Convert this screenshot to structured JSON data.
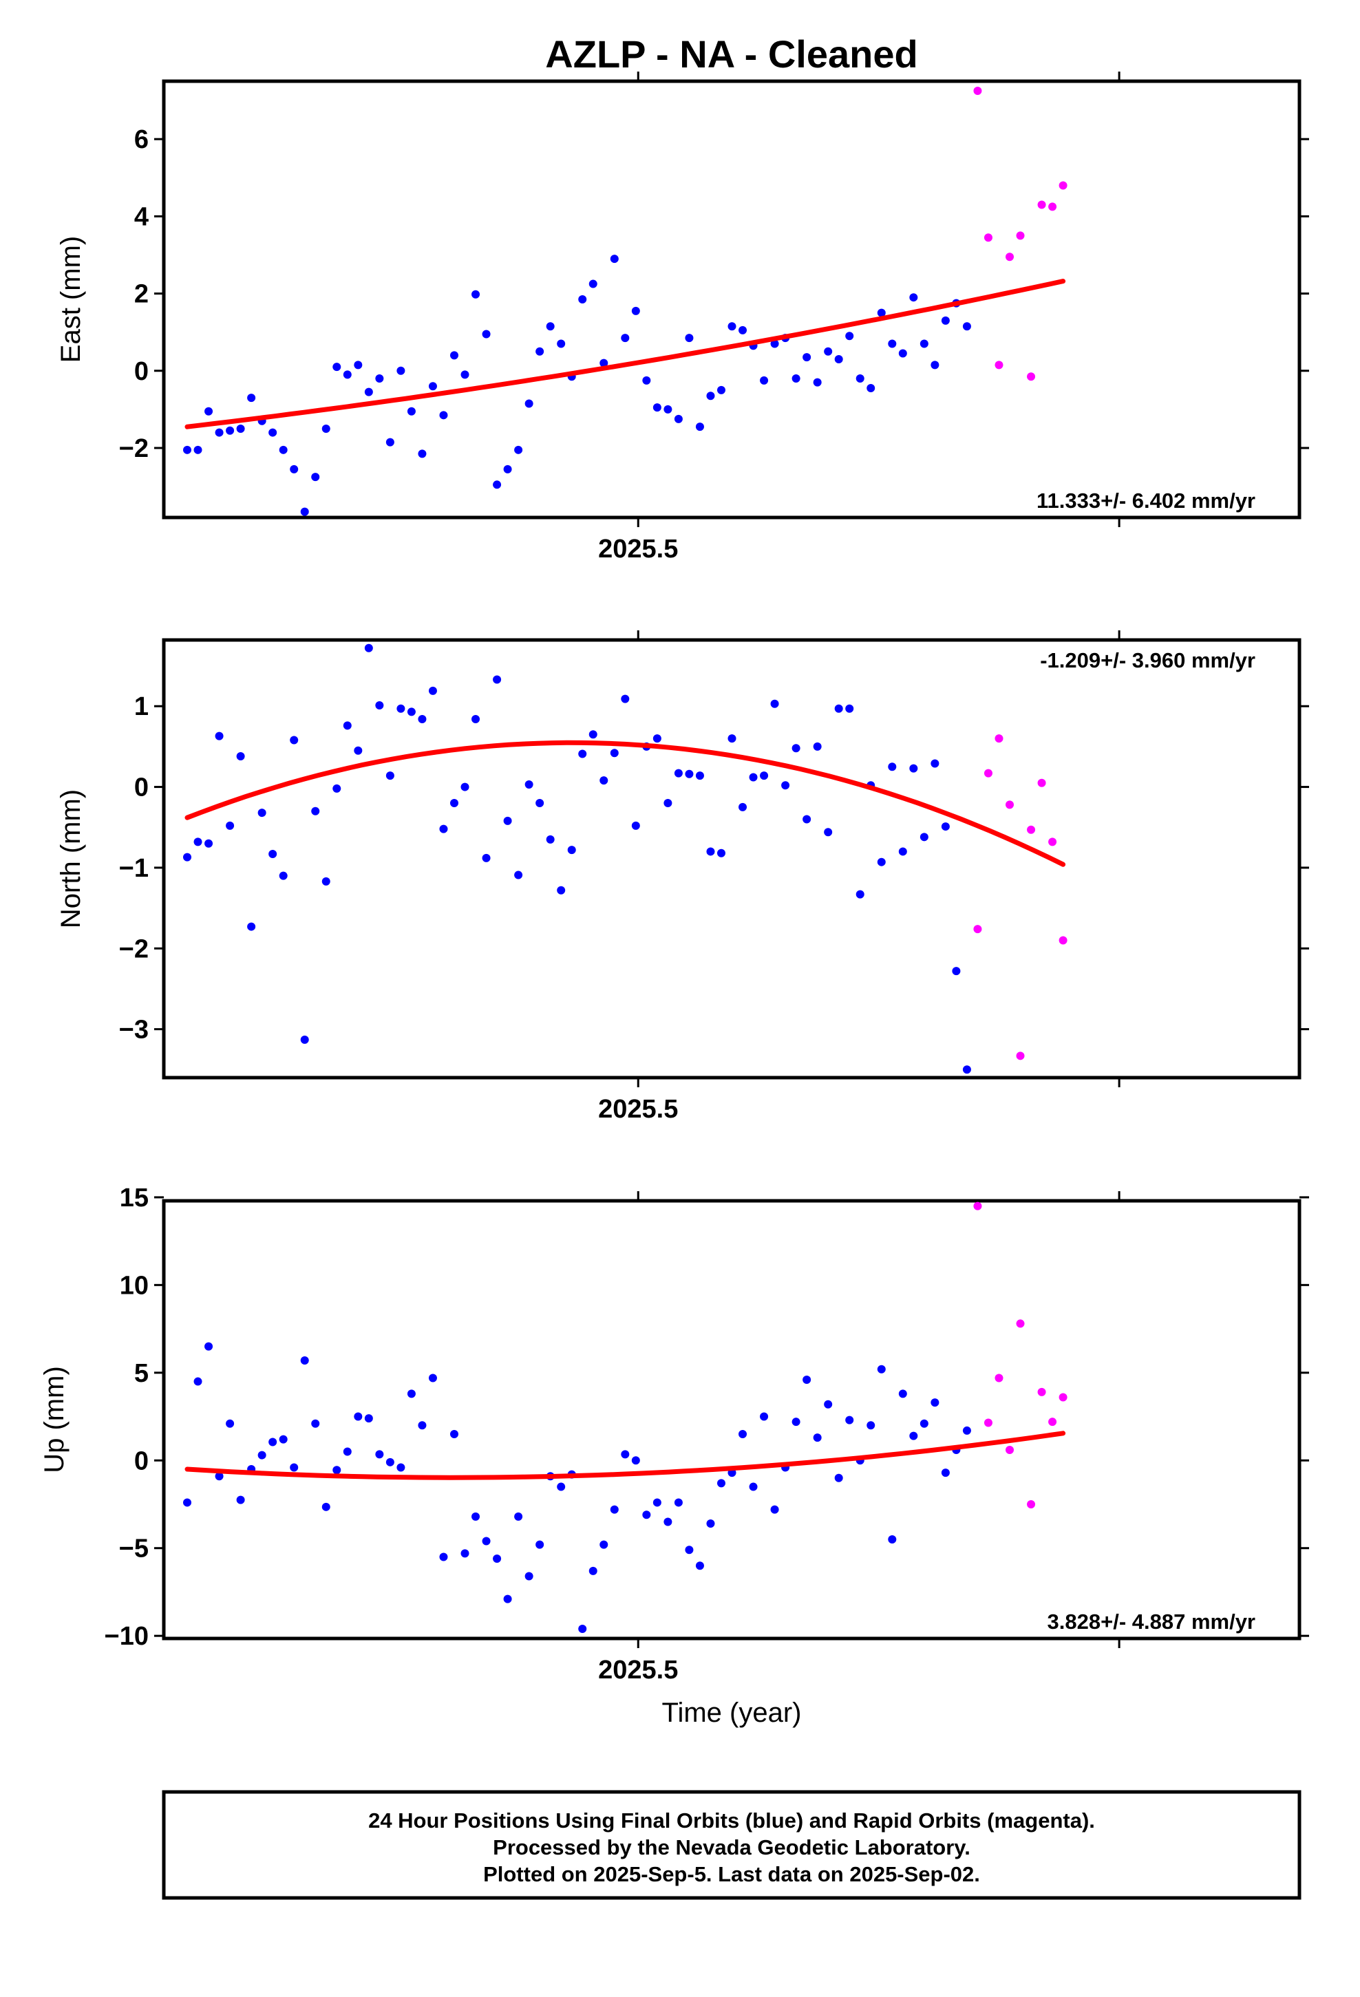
{
  "title": "AZLP  - NA - Cleaned",
  "xlabel": "Time (year)",
  "footer": [
    "24 Hour Positions Using Final Orbits (blue) and Rapid Orbits (magenta).",
    "Processed by the Nevada Geodetic Laboratory.",
    "Plotted on 2025-Sep-5. Last data on 2025-Sep-02."
  ],
  "colors": {
    "final": "#0000ff",
    "rapid": "#ff00ff",
    "fit": "#ff0000"
  },
  "chart_data": [
    {
      "type": "scatter",
      "ylabel": "East (mm)",
      "rate_text": "11.333+/- 6.402 mm/yr",
      "xlim": [
        2025.3784,
        2025.6695
      ],
      "ylim": [
        -3.8,
        7.5
      ],
      "x_tick_labels": [
        {
          "value": 2025.5,
          "label": "2025.5"
        }
      ],
      "x_ticks": [
        2025.5,
        2025.6233
      ],
      "y_ticks": [
        -2,
        0,
        2,
        4,
        6
      ],
      "start": 2025.3844,
      "step": 0.002738,
      "final": [
        -2.05,
        -2.05,
        -1.05,
        -1.6,
        -1.55,
        -1.5,
        -0.7,
        -1.3,
        -1.6,
        -2.05,
        -2.55,
        -3.65,
        -2.75,
        -1.5,
        0.1,
        -0.1,
        0.15,
        -0.55,
        -0.2,
        -1.85,
        0.0,
        -1.05,
        -2.15,
        -0.4,
        -1.15,
        0.4,
        -0.1,
        1.98,
        0.95,
        -2.95,
        -2.55,
        -2.05,
        -0.85,
        0.5,
        1.15,
        0.7,
        -0.15,
        1.85,
        2.25,
        0.2,
        2.9,
        0.85,
        1.55,
        -0.25,
        -0.95,
        -1.0,
        -1.25,
        0.85,
        -1.45,
        -0.65,
        -0.5,
        1.15,
        1.05,
        0.65,
        -0.25,
        0.7,
        0.85,
        -0.2,
        0.35,
        -0.3,
        0.5,
        0.3,
        0.9,
        -0.2,
        -0.45,
        1.5,
        0.7,
        0.45,
        1.9,
        0.7,
        0.15,
        1.3,
        1.75,
        1.15
      ],
      "rapid": [
        7.25,
        3.45,
        0.15,
        2.95,
        3.5,
        -0.15,
        4.3,
        4.25,
        4.8
      ],
      "fit_endpoints": [
        -1.45,
        2.32
      ]
    },
    {
      "type": "scatter",
      "ylabel": "North (mm)",
      "rate_text": "-1.209+/- 3.960 mm/yr",
      "xlim": [
        2025.3784,
        2025.6695
      ],
      "ylim": [
        -3.6,
        1.82
      ],
      "x_tick_labels": [
        {
          "value": 2025.5,
          "label": "2025.5"
        }
      ],
      "x_ticks": [
        2025.5,
        2025.6233
      ],
      "y_ticks": [
        -3,
        -2,
        -1,
        0,
        1
      ],
      "start": 2025.3844,
      "step": 0.002738,
      "final": [
        -0.87,
        -0.68,
        -0.7,
        0.63,
        -0.48,
        0.38,
        -1.73,
        -0.32,
        -0.83,
        -1.1,
        0.58,
        -3.13,
        -0.3,
        -1.17,
        -0.02,
        0.76,
        0.45,
        1.72,
        1.01,
        0.14,
        0.97,
        0.93,
        0.84,
        1.19,
        -0.52,
        -0.2,
        0.0,
        0.84,
        -0.88,
        1.33,
        -0.42,
        -1.09,
        0.03,
        -0.2,
        -0.65,
        -1.28,
        -0.78,
        0.41,
        0.65,
        0.08,
        0.42,
        1.09,
        -0.48,
        0.5,
        0.6,
        -0.2,
        0.17,
        0.16,
        0.14,
        -0.8,
        -0.82,
        0.6,
        -0.25,
        0.12,
        0.14,
        1.03,
        0.02,
        0.48,
        -0.4,
        0.5,
        -0.56,
        0.97,
        0.97,
        -1.33,
        0.02,
        -0.93,
        0.25,
        -0.8,
        0.23,
        -0.62,
        0.29,
        -0.49,
        -2.28,
        -3.5
      ],
      "rapid": [
        -1.76,
        0.17,
        0.6,
        -0.22,
        -3.33,
        -0.53,
        0.05,
        -0.68,
        -1.9
      ],
      "fit_endpoints": [
        -0.38,
        -0.96
      ]
    },
    {
      "type": "scatter",
      "ylabel": "Up (mm)",
      "rate_text": "3.828+/- 4.887 mm/yr",
      "xlim": [
        2025.3784,
        2025.6695
      ],
      "ylim": [
        -10.15,
        14.8
      ],
      "x_tick_labels": [
        {
          "value": 2025.5,
          "label": "2025.5"
        }
      ],
      "x_ticks": [
        2025.5,
        2025.6233
      ],
      "y_ticks": [
        -10,
        -5,
        0,
        5,
        10,
        15
      ],
      "start": 2025.3844,
      "step": 0.002738,
      "final": [
        -2.4,
        4.5,
        6.5,
        -0.9,
        2.1,
        -2.25,
        -0.5,
        0.3,
        1.05,
        1.2,
        -0.4,
        5.7,
        2.1,
        -2.65,
        -0.55,
        0.5,
        2.5,
        2.4,
        0.35,
        -0.1,
        -0.4,
        3.8,
        2.0,
        4.7,
        -5.5,
        1.5,
        -5.3,
        -3.2,
        -4.6,
        -5.6,
        -7.9,
        -3.2,
        -6.6,
        -4.8,
        -0.9,
        -1.5,
        -0.8,
        -9.6,
        -6.3,
        -4.8,
        -2.8,
        0.35,
        0.0,
        -3.1,
        -2.4,
        -3.5,
        -2.4,
        -5.1,
        -6.0,
        -3.6,
        -1.3,
        -0.7,
        1.5,
        -1.5,
        2.5,
        -2.8,
        -0.4,
        2.2,
        4.6,
        1.3,
        3.2,
        -1.0,
        2.3,
        0.0,
        2.0,
        5.2,
        -4.5,
        3.8,
        1.4,
        2.1,
        3.3,
        -0.7,
        0.6,
        1.7
      ],
      "rapid": [
        14.5,
        2.15,
        4.7,
        0.6,
        7.8,
        -2.5,
        3.9,
        2.2,
        3.6
      ],
      "fit_endpoints": [
        -0.5,
        1.55
      ]
    }
  ]
}
